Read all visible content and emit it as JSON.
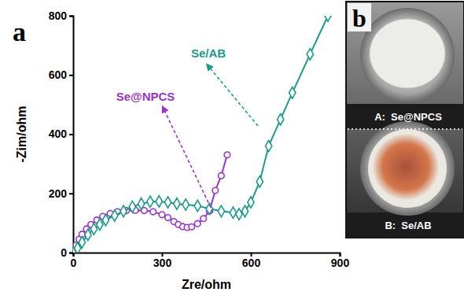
{
  "chart_data": {
    "type": "line",
    "panel_label": "a",
    "x_label": "Zre/ohm",
    "y_label": "-Zim/ohm",
    "xlim": [
      0,
      900
    ],
    "xticks": [
      0,
      300,
      600,
      900
    ],
    "ylim": [
      0,
      800
    ],
    "yticks": [
      0,
      200,
      400,
      600,
      800
    ],
    "grid": false,
    "series": [
      {
        "name": "Se@NPCS",
        "color": "#9933cc",
        "marker": "circle",
        "line_style": "solid",
        "x": [
          0,
          10,
          20,
          30,
          45,
          60,
          80,
          100,
          125,
          150,
          180,
          210,
          240,
          270,
          300,
          320,
          340,
          355,
          370,
          385,
          400,
          420,
          440,
          460,
          480,
          500,
          520
        ],
        "values": [
          0,
          25,
          45,
          62,
          80,
          95,
          110,
          122,
          132,
          138,
          142,
          143,
          142,
          138,
          128,
          118,
          105,
          95,
          88,
          85,
          87,
          98,
          115,
          140,
          210,
          260,
          330
        ]
      },
      {
        "name": "Se/AB",
        "color": "#1a9a8a",
        "marker": "diamond",
        "line_style": "solid",
        "x": [
          0,
          15,
          30,
          50,
          70,
          90,
          110,
          140,
          170,
          200,
          230,
          260,
          290,
          320,
          350,
          380,
          420,
          460,
          500,
          540,
          560,
          580,
          600,
          630,
          660,
          700,
          740,
          800,
          860
        ],
        "values": [
          0,
          15,
          35,
          60,
          80,
          95,
          110,
          125,
          140,
          155,
          165,
          172,
          173,
          170,
          165,
          162,
          158,
          148,
          140,
          135,
          130,
          140,
          170,
          240,
          360,
          450,
          540,
          670,
          800
        ]
      }
    ]
  },
  "photo": {
    "panel_label": "b",
    "captions": [
      "A:  Se@NPCS",
      "B:  Se/AB"
    ]
  }
}
